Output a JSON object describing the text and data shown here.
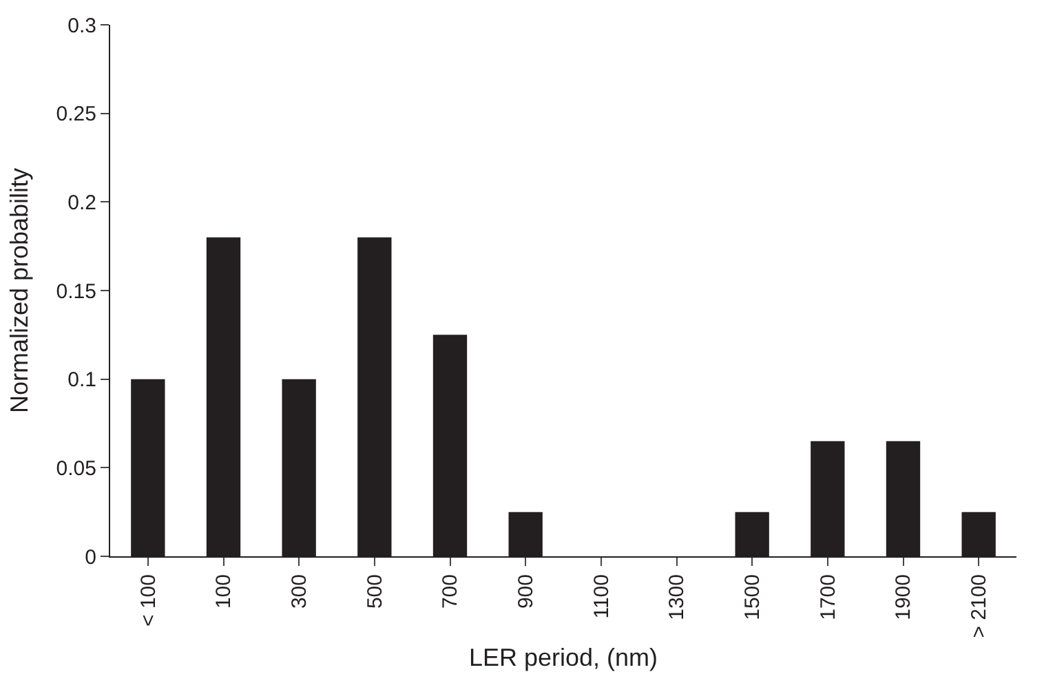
{
  "chart_data": {
    "type": "bar",
    "xlabel": "LER period, (nm)",
    "ylabel": "Normalized probability",
    "categories": [
      "< 100",
      "100",
      "300",
      "500",
      "700",
      "900",
      "1100",
      "1300",
      "1500",
      "1700",
      "1900",
      "> 2100"
    ],
    "values": [
      0.1,
      0.18,
      0.1,
      0.18,
      0.125,
      0.025,
      0,
      0,
      0.025,
      0.065,
      0.065,
      0.025
    ],
    "color": "#231f20",
    "ylim": [
      0,
      0.3
    ],
    "yticks": [
      0,
      0.05,
      0.1,
      0.15,
      0.2,
      0.25,
      0.3
    ]
  }
}
